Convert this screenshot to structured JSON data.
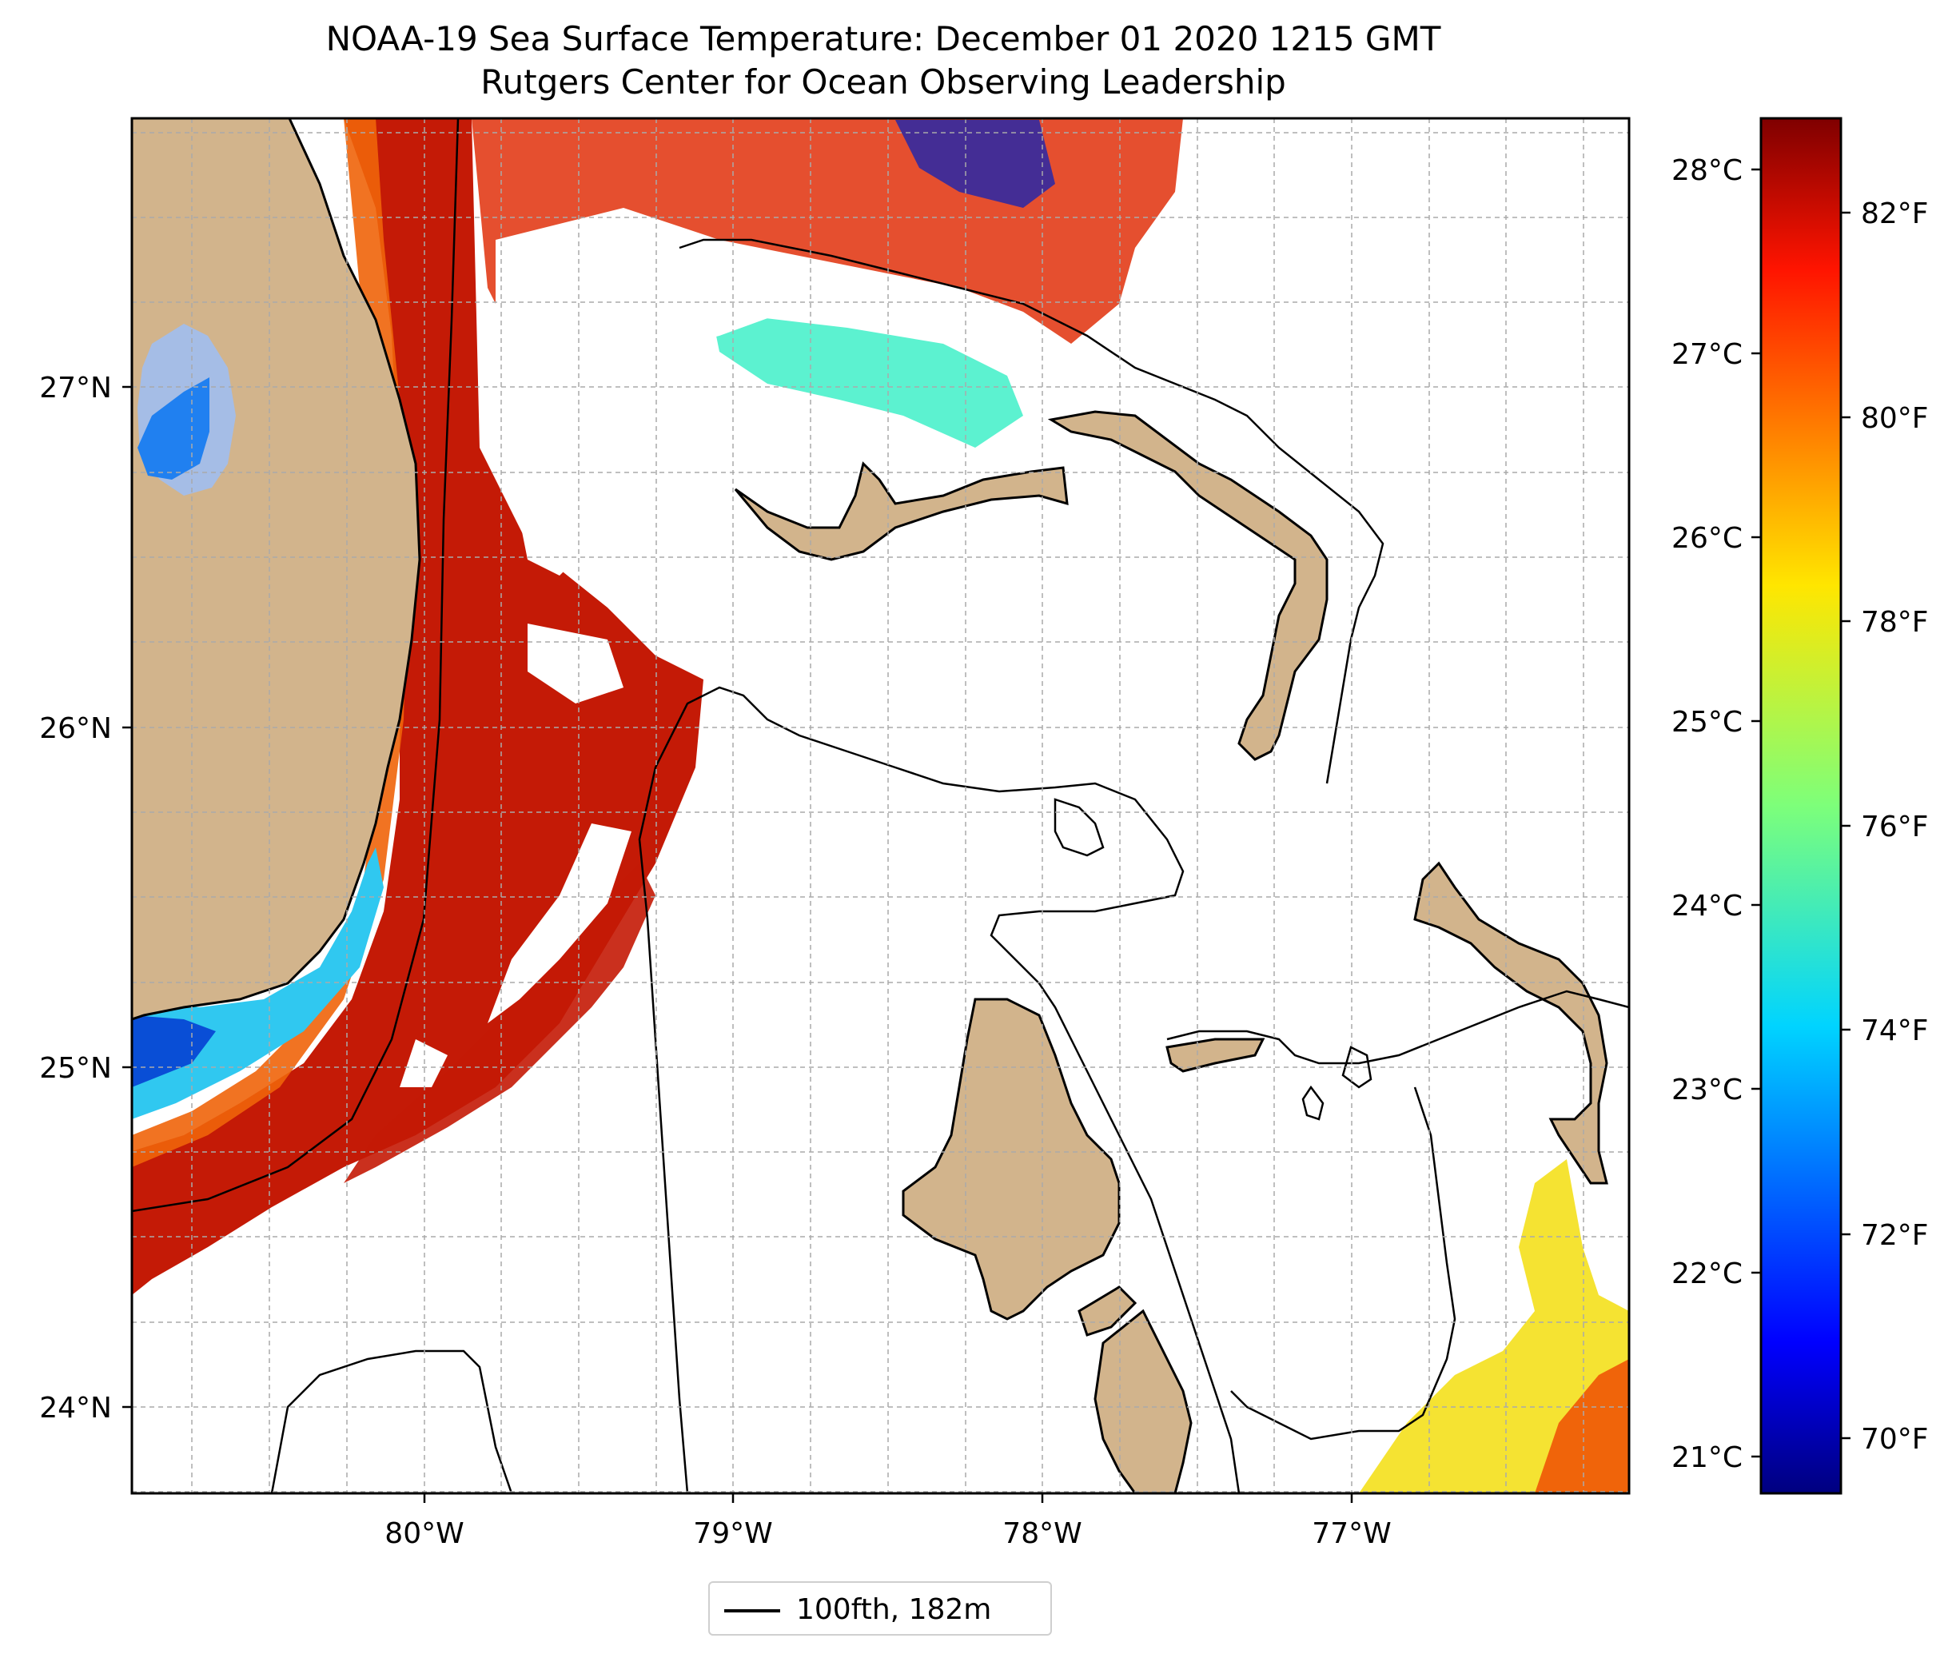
{
  "title": "NOAA-19 Sea Surface Temperature: December 01 2020 1215 GMT",
  "subtitle": "Rutgers Center for Ocean Observing Leadership",
  "map": {
    "lon_ticks": [
      "80°W",
      "79°W",
      "78°W",
      "77°W"
    ],
    "lat_ticks": [
      "27°N",
      "26°N",
      "25°N",
      "24°N"
    ],
    "colors": {
      "land": "#d2b48c",
      "lake": "#a5bde6",
      "sst_warm": "#c41a06",
      "sst_hot": "#f0640a",
      "sst_cool": "#3ff0c8",
      "sst_cold": "#0010a0",
      "sst_yellow": "#f4e01c"
    }
  },
  "colorbar": {
    "celsius_ticks": [
      "28°C",
      "27°C",
      "26°C",
      "25°C",
      "24°C",
      "23°C",
      "22°C",
      "21°C"
    ],
    "fahrenheit_ticks": [
      "82°F",
      "80°F",
      "78°F",
      "76°F",
      "74°F",
      "72°F",
      "70°F"
    ],
    "colormap": "jet"
  },
  "legend": {
    "label": "100fth, 182m"
  }
}
